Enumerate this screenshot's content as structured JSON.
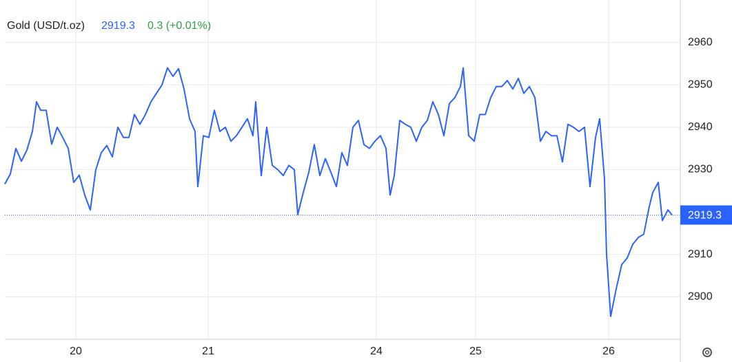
{
  "chart_data": {
    "type": "line",
    "title": "Gold (USD/t.oz)",
    "last_price": 2919.3,
    "change": "0.3 (+0.01%)",
    "series": [
      {
        "name": "Gold",
        "color": "#2962ff",
        "x": [
          0,
          8,
          16,
          24,
          32,
          40,
          46,
          52,
          60,
          68,
          76,
          84,
          92,
          100,
          108,
          116,
          124,
          132,
          140,
          148,
          156,
          164,
          172,
          180,
          188,
          196,
          204,
          212,
          220,
          228,
          236,
          244,
          252,
          260,
          268,
          276,
          280,
          288,
          296,
          304,
          312,
          320,
          328,
          336,
          344,
          352,
          360,
          364,
          372,
          380,
          388,
          396,
          404,
          412,
          420,
          425,
          433,
          441,
          449,
          457,
          465,
          473,
          481,
          489,
          497,
          505,
          513,
          521,
          529,
          537,
          545,
          553,
          559,
          565,
          573,
          581,
          589,
          597,
          605,
          613,
          621,
          629,
          637,
          645,
          653,
          661,
          665,
          673,
          681,
          689,
          697,
          705,
          713,
          721,
          729,
          737,
          745,
          753,
          761,
          769,
          777,
          785,
          793,
          801,
          809,
          817,
          825,
          833,
          841,
          849,
          857,
          863,
          870,
          873,
          879,
          887,
          895,
          903,
          911,
          919,
          927,
          935,
          940,
          948,
          954,
          962,
          968
        ],
        "values": [
          2926.6,
          2929,
          2935,
          2932,
          2934.6,
          2939,
          2946,
          2944,
          2944,
          2936,
          2940,
          2937.6,
          2935,
          2927,
          2928.7,
          2924,
          2920.5,
          2930,
          2934,
          2935.7,
          2933,
          2940,
          2937.6,
          2937.6,
          2943,
          2940.7,
          2943,
          2946,
          2948,
          2950,
          2954,
          2952,
          2953.8,
          2949,
          2942,
          2939,
          2926,
          2938,
          2937.6,
          2944,
          2939,
          2940,
          2936.7,
          2938,
          2940,
          2942,
          2938,
          2946,
          2928.6,
          2940,
          2931,
          2930,
          2928.6,
          2931,
          2930,
          2919.4,
          2924.6,
          2929.4,
          2935.9,
          2928.6,
          2932.6,
          2929.4,
          2926,
          2934,
          2931,
          2940,
          2941.6,
          2935.9,
          2935,
          2936.7,
          2938,
          2935,
          2924,
          2928.6,
          2941.6,
          2940.7,
          2940,
          2936.7,
          2940,
          2941.6,
          2946,
          2943,
          2938,
          2945.6,
          2947,
          2949.6,
          2954,
          2938,
          2936.7,
          2943,
          2943,
          2947,
          2949.6,
          2949.6,
          2951,
          2949,
          2951.5,
          2948,
          2949.6,
          2947,
          2936.7,
          2939,
          2938,
          2938,
          2931.8,
          2940.7,
          2940,
          2939,
          2940,
          2926,
          2937.6,
          2942,
          2927.8,
          2910,
          2895.4,
          2901.9,
          2907.6,
          2909.2,
          2912.4,
          2914,
          2914.8,
          2921.3,
          2924.6,
          2927,
          2918,
          2920.5,
          2919.3
        ]
      }
    ],
    "xlim": [
      0,
      980
    ],
    "xticks": [
      {
        "value": 103,
        "label": "20"
      },
      {
        "value": 295,
        "label": "21"
      },
      {
        "value": 539,
        "label": "24"
      },
      {
        "value": 683,
        "label": "25"
      },
      {
        "value": 876,
        "label": "26"
      }
    ],
    "ylim": [
      2890,
      2970
    ],
    "yticks": [
      2900,
      2910,
      2930,
      2940,
      2950,
      2960
    ],
    "grid": true
  }
}
